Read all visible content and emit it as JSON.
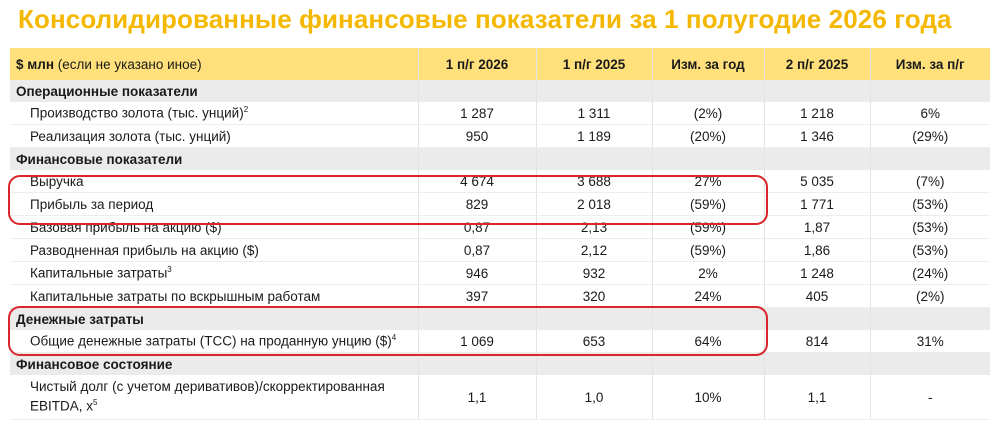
{
  "title": "Консолидированные финансовые показатели за 1 полугодие 2026 года",
  "header": {
    "first_col_bold": "$ млн",
    "first_col_note": "(если не указано иное)",
    "cols": [
      "1 п/г 2026",
      "1 п/г 2025",
      "Изм. за год",
      "2 п/г 2025",
      "Изм. за п/г"
    ]
  },
  "sections": {
    "operational": "Операционные показатели",
    "financial": "Финансовые показатели",
    "cash_costs": "Денежные затраты",
    "position": "Финансовое состояние"
  },
  "rows": {
    "gold_production": {
      "label": "Производство золота (тыс. унций)",
      "sup": "2",
      "values": [
        "1 287",
        "1 311",
        "(2%)",
        "1 218",
        "6%"
      ]
    },
    "gold_sales": {
      "label": "Реализация золота (тыс. унций)",
      "values": [
        "950",
        "1 189",
        "(20%)",
        "1 346",
        "(29%)"
      ]
    },
    "revenue": {
      "label": "Выручка",
      "values": [
        "4 674",
        "3 688",
        "27%",
        "5 035",
        "(7%)"
      ]
    },
    "profit": {
      "label": "Прибыль за период",
      "values": [
        "829",
        "2 018",
        "(59%)",
        "1 771",
        "(53%)"
      ]
    },
    "basic_eps": {
      "label": "Базовая прибыль на акцию ($)",
      "values": [
        "0,87",
        "2,13",
        "(59%)",
        "1,87",
        "(53%)"
      ]
    },
    "diluted_eps": {
      "label": "Разводненная прибыль на акцию ($)",
      "values": [
        "0,87",
        "2,12",
        "(59%)",
        "1,86",
        "(53%)"
      ]
    },
    "capex": {
      "label": "Капитальные затраты",
      "sup": "3",
      "values": [
        "946",
        "932",
        "2%",
        "1 248",
        "(24%)"
      ]
    },
    "stripping_capex": {
      "label": "Капитальные затраты по вскрышным работам",
      "values": [
        "397",
        "320",
        "24%",
        "405",
        "(2%)"
      ]
    },
    "tcc": {
      "label": "Общие денежные затраты (ТСС) на проданную унцию ($)",
      "sup": "4",
      "values": [
        "1 069",
        "653",
        "64%",
        "814",
        "31%"
      ]
    },
    "net_debt": {
      "label": "Чистый долг (с учетом деривативов)/скорректированная EBITDA, x",
      "sup": "5",
      "values": [
        "1,1",
        "1,0",
        "10%",
        "1,1",
        "-"
      ]
    }
  },
  "colors": {
    "title": "#f5b800",
    "header_bg": "#ffe07a",
    "section_bg": "#ebebeb",
    "highlight": "#d8262b"
  }
}
